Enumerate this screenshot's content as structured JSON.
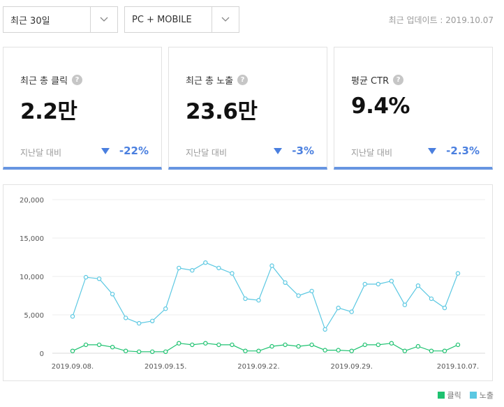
{
  "filters": {
    "period": "최근 30일",
    "device": "PC + MOBILE"
  },
  "last_update": "최근 업데이트 : 2019.10.07",
  "cards": [
    {
      "title": "최근 총 클릭",
      "value": "2.2만",
      "compare_label": "지난달 대비",
      "change": "-22%"
    },
    {
      "title": "최근 총 노출",
      "value": "23.6만",
      "compare_label": "지난달 대비",
      "change": "-3%"
    },
    {
      "title": "평균 CTR",
      "value": "9.4%",
      "compare_label": "지난달 대비",
      "change": "-2.3%"
    }
  ],
  "help_icon_glyph": "?",
  "colors": {
    "accent": "#6795e1",
    "change": "#4a7fdf",
    "clicks": "#1ec270",
    "impressions": "#5bc8e2"
  },
  "chart_data": {
    "type": "line",
    "x": [
      "2019.09.08.",
      "2019.09.09.",
      "2019.09.10.",
      "2019.09.11.",
      "2019.09.12.",
      "2019.09.13.",
      "2019.09.14.",
      "2019.09.15.",
      "2019.09.16.",
      "2019.09.17.",
      "2019.09.18.",
      "2019.09.19.",
      "2019.09.20.",
      "2019.09.21.",
      "2019.09.22.",
      "2019.09.23.",
      "2019.09.24.",
      "2019.09.25.",
      "2019.09.26.",
      "2019.09.27.",
      "2019.09.28.",
      "2019.09.29.",
      "2019.09.30.",
      "2019.10.01.",
      "2019.10.02.",
      "2019.10.03.",
      "2019.10.04.",
      "2019.10.05.",
      "2019.10.06.",
      "2019.10.07."
    ],
    "xticks": [
      "2019.09.08.",
      "2019.09.15.",
      "2019.09.22.",
      "2019.09.29.",
      "2019.10.07."
    ],
    "ylim": [
      0,
      20000
    ],
    "yticks": [
      "0",
      "5,000",
      "10,000",
      "15,000",
      "20,000"
    ],
    "grid": true,
    "legend_position": "bottom-right",
    "series": [
      {
        "name": "클릭",
        "values": [
          300,
          1100,
          1100,
          800,
          300,
          200,
          200,
          200,
          1300,
          1100,
          1300,
          1100,
          1100,
          300,
          300,
          900,
          1100,
          900,
          1100,
          400,
          400,
          300,
          1100,
          1100,
          1300,
          300,
          900,
          300,
          300,
          1100
        ]
      },
      {
        "name": "노출",
        "values": [
          4800,
          9900,
          9700,
          7700,
          4600,
          3900,
          4200,
          5800,
          11100,
          10800,
          11800,
          11100,
          10400,
          7100,
          6900,
          11400,
          9200,
          7500,
          8100,
          3100,
          5900,
          5400,
          9000,
          9000,
          9400,
          6300,
          8800,
          7100,
          5900,
          10400
        ]
      }
    ]
  }
}
